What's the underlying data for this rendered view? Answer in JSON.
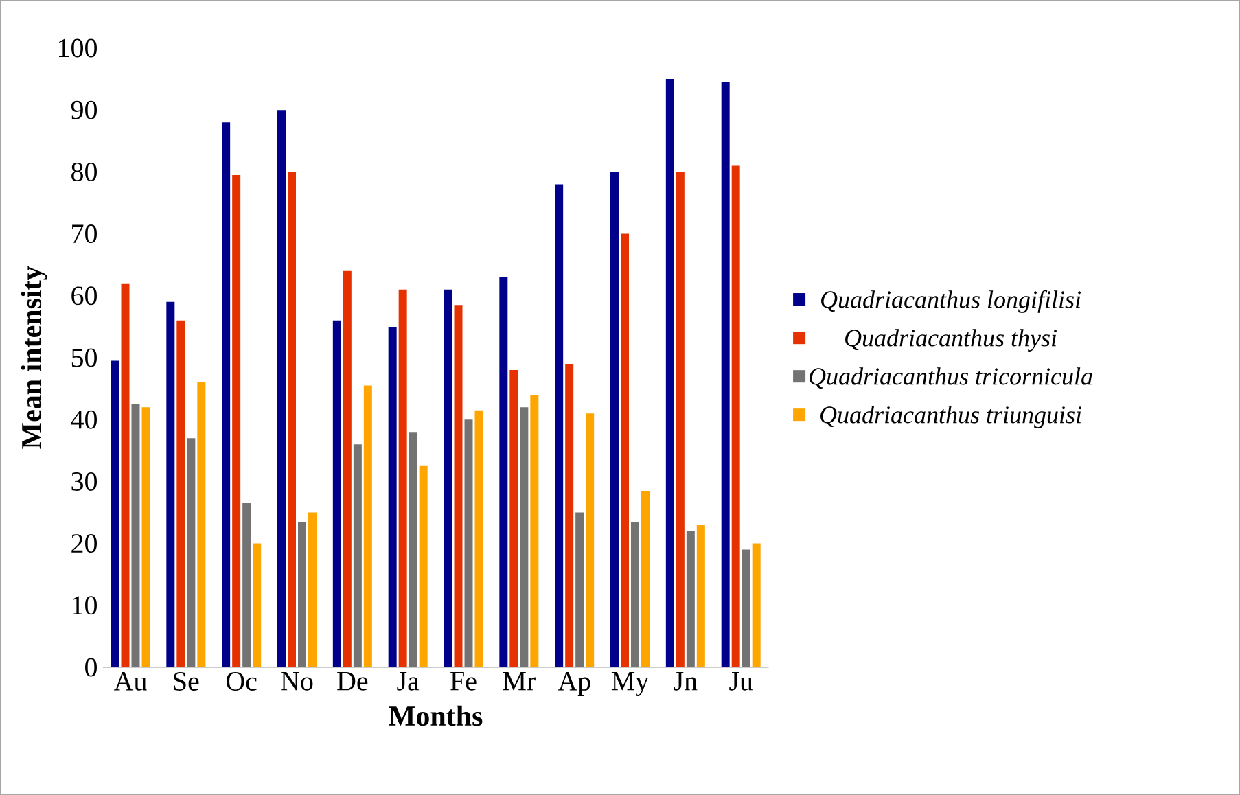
{
  "chart_data": {
    "type": "bar",
    "xlabel": "Months",
    "ylabel": "Mean intensity",
    "categories": [
      "Au",
      "Se",
      "Oc",
      "No",
      "De",
      "Ja",
      "Fe",
      "Mr",
      "Ap",
      "My",
      "Jn",
      "Ju"
    ],
    "series": [
      {
        "name": "Quadriacanthus longifilisi",
        "color": "#00008b",
        "values": [
          49.5,
          59,
          88,
          90,
          56,
          55,
          61,
          63,
          78,
          80,
          95,
          94.5
        ]
      },
      {
        "name": "Quadriacanthus thysi",
        "color": "#e63200",
        "values": [
          62,
          56,
          79.5,
          80,
          64,
          61,
          58.5,
          48,
          49,
          70,
          80,
          81
        ]
      },
      {
        "name": "Quadriacanthus tricornicula",
        "color": "#737373",
        "values": [
          42.5,
          37,
          26.5,
          23.5,
          36,
          38,
          40,
          42,
          25,
          23.5,
          22,
          19
        ]
      },
      {
        "name": "Quadriacanthus triunguisi",
        "color": "#ffa500",
        "values": [
          42,
          46,
          20,
          25,
          45.5,
          32.5,
          41.5,
          44,
          41,
          28.5,
          23,
          20
        ]
      }
    ],
    "ylim": [
      0,
      100
    ],
    "yticks": [
      0,
      10,
      20,
      30,
      40,
      50,
      60,
      70,
      80,
      90,
      100
    ],
    "grid": false,
    "legend": "right"
  }
}
